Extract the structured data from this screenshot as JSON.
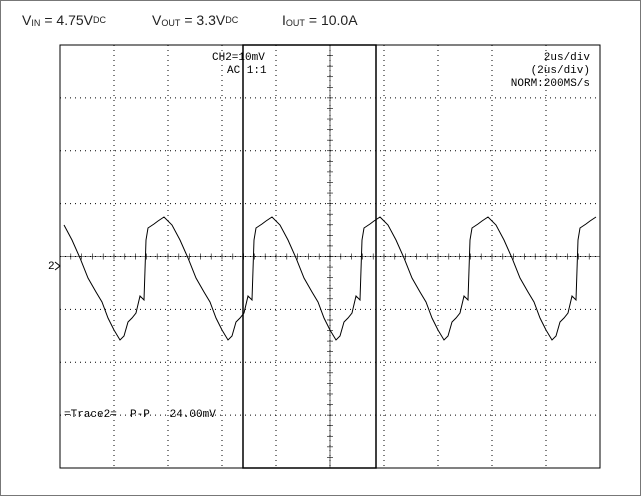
{
  "header": {
    "labels": [
      {
        "symbol": "V",
        "sub": "IN",
        "value": "= 4.75V",
        "unit": "DC"
      },
      {
        "symbol": "V",
        "sub": "OUT",
        "value": "= 3.3V",
        "unit": "DC"
      },
      {
        "symbol": "I",
        "sub": "OUT",
        "value": "= 10.0A"
      }
    ]
  },
  "scope": {
    "channel_scale": "CH2=10mV",
    "coupling": "AC 1:1",
    "timebase": "2us/div",
    "timebase_alt": "(2us/div)",
    "sample_rate": "NORM:200MS/s",
    "measurement": "=Trace2=  P-P   24.00mV",
    "marker": "2"
  }
}
